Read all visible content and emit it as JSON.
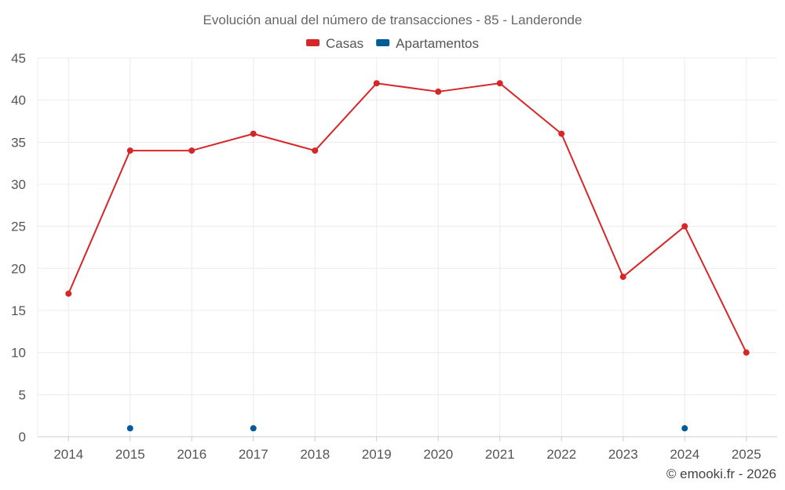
{
  "chart_data": {
    "type": "line",
    "title": "Evolución anual del número de transacciones - 85 - Landeronde",
    "categories": [
      "2014",
      "2015",
      "2016",
      "2017",
      "2018",
      "2019",
      "2020",
      "2021",
      "2022",
      "2023",
      "2024",
      "2025"
    ],
    "series": [
      {
        "name": "Casas",
        "color": "#d62728",
        "values": [
          17,
          34,
          34,
          36,
          34,
          42,
          41,
          42,
          36,
          19,
          25,
          10
        ],
        "connect": true
      },
      {
        "name": "Apartamentos",
        "color": "#005b96",
        "values": [
          null,
          1,
          null,
          1,
          null,
          null,
          null,
          null,
          null,
          null,
          1,
          null
        ],
        "connect": false
      }
    ],
    "ylim": [
      0,
      45
    ],
    "yticks": [
      0,
      5,
      10,
      15,
      20,
      25,
      30,
      35,
      40,
      45
    ],
    "xlabel": "",
    "ylabel": "",
    "grid": true,
    "legend_position": "top-center"
  },
  "credit": "© emooki.fr - 2026"
}
